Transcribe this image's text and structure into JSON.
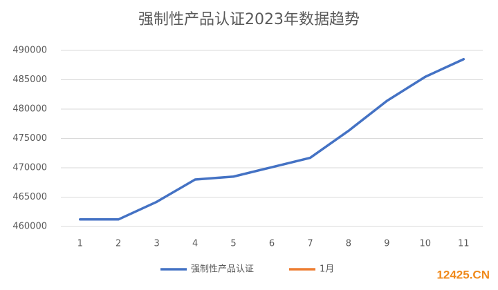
{
  "chart_data": {
    "type": "line",
    "title": "强制性产品认证2023年数据趋势",
    "categories": [
      "1",
      "2",
      "3",
      "4",
      "5",
      "6",
      "7",
      "8",
      "9",
      "10",
      "11"
    ],
    "series": [
      {
        "name": "强制性产品认证",
        "color": "#4472c4",
        "values": [
          461200,
          461200,
          464200,
          468000,
          468500,
          470100,
          471700,
          476300,
          481400,
          485500,
          488500
        ]
      },
      {
        "name": "1月",
        "color": "#ed7d31",
        "values": [
          null,
          null,
          null,
          null,
          null,
          null,
          null,
          null,
          null,
          null,
          null
        ]
      }
    ],
    "ylim": [
      460000,
      490000
    ],
    "yticks": [
      460000,
      465000,
      470000,
      475000,
      480000,
      485000,
      490000
    ],
    "grid": true,
    "legend": "bottom",
    "watermark": "12425.CN"
  }
}
